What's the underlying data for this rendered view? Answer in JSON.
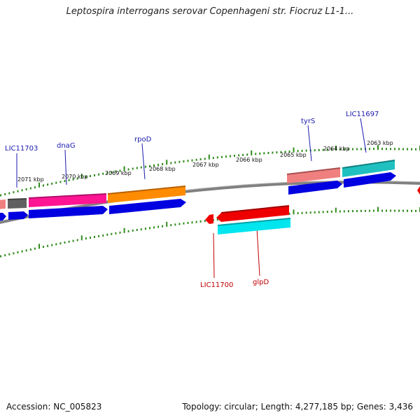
{
  "title": "Leptospira interrogans serovar Copenhageni str. Fiocruz L1-1...",
  "footer": {
    "accession": "Accession: NC_005823",
    "summary": "Topology: circular; Length: 4,277,185 bp; Genes: 3,436"
  },
  "scale_labels": [
    "2071 kbp",
    "2070 kbp",
    "2069 kbp",
    "2068 kbp",
    "2067 kbp",
    "2066 kbp",
    "2065 kbp",
    "2064 kbp",
    "2063 kbp"
  ],
  "genes_top": [
    "LIC11703",
    "dnaG",
    "rpoD",
    "tyrS",
    "LIC11697"
  ],
  "genes_bottom": [
    "LIC11700",
    "glpD"
  ],
  "colors": {
    "backbone": "#808080",
    "tick": "#2e8b1a",
    "cds": "#0000e0",
    "dnaG": "#ff1493",
    "rpoD": "#ff8c00",
    "tyrS": "#f08080",
    "LIC11697": "#20c0c0",
    "LIC11700": "#ee0000",
    "glpD": "#00e5ee",
    "grey_gene": "#606060"
  }
}
